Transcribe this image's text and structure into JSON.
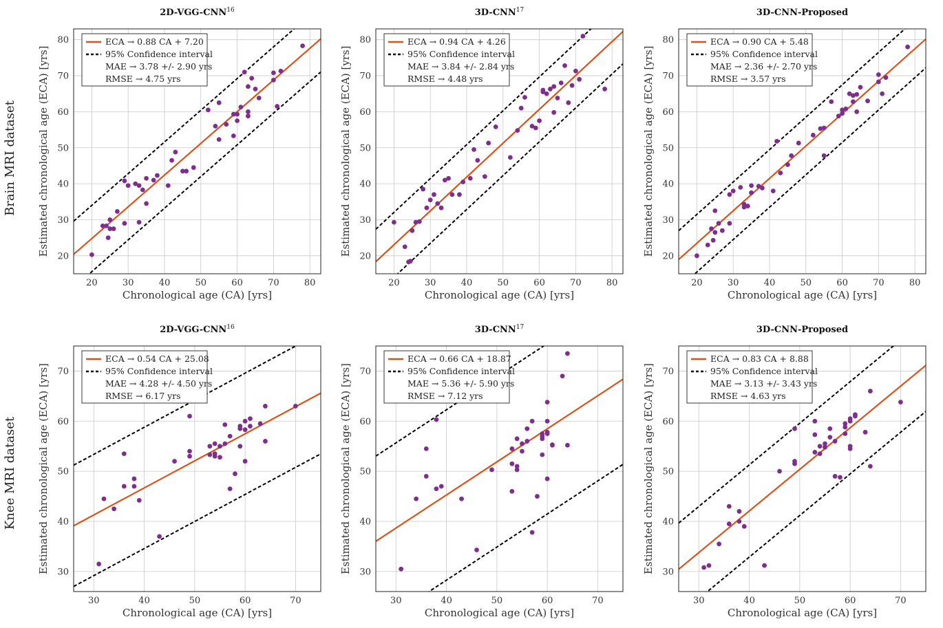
{
  "row_labels": [
    "Brain MRI dataset",
    "Knee MRI dataset"
  ],
  "colors": {
    "fit": "#d95319",
    "point": "#7e2f8e",
    "ci": "#000000",
    "grid": "#c8c8c8"
  },
  "chart_data": [
    {
      "type": "scatter",
      "title": "2D-VGG-CNN",
      "title_sup": "16",
      "xlabel": "Chronological age (CA) [yrs]",
      "ylabel": "Estimated chronological age (ECA) [yrs]",
      "xlim": [
        15,
        83
      ],
      "ylim": [
        15,
        83
      ],
      "xticks": [
        20,
        30,
        40,
        50,
        60,
        70,
        80
      ],
      "yticks": [
        20,
        30,
        40,
        50,
        60,
        70,
        80
      ],
      "fit": {
        "slope": 0.88,
        "intercept": 7.2,
        "ci_offset": 9.2
      },
      "legend": [
        "ECA → 0.88 CA + 7.20",
        "95% Confidence interval",
        "MAE → 3.78 +/- 2.90 yrs",
        "RMSE → 4.75 yrs"
      ],
      "points": [
        [
          20,
          20.3
        ],
        [
          23,
          28.3
        ],
        [
          24,
          28.3
        ],
        [
          24.5,
          25
        ],
        [
          25,
          27.5
        ],
        [
          25,
          30
        ],
        [
          26,
          27.5
        ],
        [
          27,
          32.3
        ],
        [
          29,
          29
        ],
        [
          29,
          40.8
        ],
        [
          30,
          39.5
        ],
        [
          32,
          40
        ],
        [
          33,
          29.3
        ],
        [
          33,
          39.5
        ],
        [
          34,
          38.3
        ],
        [
          35,
          41.5
        ],
        [
          35,
          34.5
        ],
        [
          37,
          41
        ],
        [
          38,
          42.3
        ],
        [
          41,
          39.5
        ],
        [
          42,
          46.5
        ],
        [
          43,
          48.8
        ],
        [
          45,
          43.5
        ],
        [
          46,
          43.5
        ],
        [
          48,
          44.5
        ],
        [
          52,
          60.5
        ],
        [
          54,
          56
        ],
        [
          55,
          62.5
        ],
        [
          55,
          52.3
        ],
        [
          57,
          56.5
        ],
        [
          59,
          53.3
        ],
        [
          59,
          59.3
        ],
        [
          60,
          57.5
        ],
        [
          60,
          59.3
        ],
        [
          61,
          61.3
        ],
        [
          62,
          71
        ],
        [
          63,
          58.8
        ],
        [
          63,
          60
        ],
        [
          63,
          67
        ],
        [
          64,
          69.3
        ],
        [
          65,
          66.3
        ],
        [
          66,
          63.8
        ],
        [
          70,
          68.8
        ],
        [
          70,
          70.8
        ],
        [
          71,
          61.5
        ],
        [
          72,
          71.3
        ],
        [
          78,
          78.3
        ]
      ]
    },
    {
      "type": "scatter",
      "title": "3D-CNN",
      "title_sup": "17",
      "xlabel": "Chronological age (CA) [yrs]",
      "ylabel": "Estimated chronological age (ECA) [yrs]",
      "xlim": [
        15,
        83
      ],
      "ylim": [
        15,
        83
      ],
      "xticks": [
        20,
        30,
        40,
        50,
        60,
        70,
        80
      ],
      "yticks": [
        20,
        30,
        40,
        50,
        60,
        70,
        80
      ],
      "fit": {
        "slope": 0.94,
        "intercept": 4.26,
        "ci_offset": 9.0
      },
      "legend": [
        "ECA → 0.94 CA + 4.26",
        "95% Confidence interval",
        "MAE → 3.84 +/- 2.84 yrs",
        "RMSE → 4.48 yrs"
      ],
      "points": [
        [
          20,
          29.3
        ],
        [
          23,
          22.5
        ],
        [
          24,
          18.3
        ],
        [
          24.5,
          18.5
        ],
        [
          25,
          27
        ],
        [
          26,
          29.3
        ],
        [
          27,
          29.5
        ],
        [
          28,
          38.5
        ],
        [
          29,
          33.3
        ],
        [
          30,
          35.5
        ],
        [
          31,
          37
        ],
        [
          32,
          34.5
        ],
        [
          33,
          33.3
        ],
        [
          34,
          41
        ],
        [
          35,
          41.5
        ],
        [
          36,
          37
        ],
        [
          38,
          37
        ],
        [
          39,
          40.5
        ],
        [
          41,
          41.5
        ],
        [
          42,
          49.5
        ],
        [
          43,
          46.5
        ],
        [
          45,
          42
        ],
        [
          46,
          51.3
        ],
        [
          48,
          55.8
        ],
        [
          52,
          47.3
        ],
        [
          54,
          54.8
        ],
        [
          55,
          61
        ],
        [
          56,
          64
        ],
        [
          58,
          56
        ],
        [
          59,
          55.5
        ],
        [
          60,
          57.5
        ],
        [
          61,
          66
        ],
        [
          61,
          65.5
        ],
        [
          62,
          65
        ],
        [
          63,
          66.3
        ],
        [
          64,
          59.8
        ],
        [
          64,
          67
        ],
        [
          65,
          63.8
        ],
        [
          66,
          68
        ],
        [
          67,
          72.8
        ],
        [
          68,
          62.5
        ],
        [
          69,
          67.3
        ],
        [
          70,
          71.3
        ],
        [
          71,
          69
        ],
        [
          72,
          81
        ],
        [
          78,
          66.3
        ]
      ]
    },
    {
      "type": "scatter",
      "title": "3D-CNN-Proposed",
      "title_sup": "",
      "xlabel": "Chronological age (CA) [yrs]",
      "ylabel": "Estimated chronological age (ECA) [yrs]",
      "xlim": [
        15,
        83
      ],
      "ylim": [
        15,
        83
      ],
      "xticks": [
        20,
        30,
        40,
        50,
        60,
        70,
        80
      ],
      "yticks": [
        20,
        30,
        40,
        50,
        60,
        70,
        80
      ],
      "fit": {
        "slope": 0.9,
        "intercept": 5.48,
        "ci_offset": 8.0
      },
      "legend": [
        "ECA → 0.90 CA + 5.48",
        "95% Confidence interval",
        "MAE → 2.36 +/- 2.70 yrs",
        "RMSE → 3.57 yrs"
      ],
      "points": [
        [
          20,
          20
        ],
        [
          23,
          23
        ],
        [
          24,
          27.5
        ],
        [
          24.5,
          24.3
        ],
        [
          25,
          32.5
        ],
        [
          25,
          26.5
        ],
        [
          26,
          29
        ],
        [
          27,
          27
        ],
        [
          29,
          29
        ],
        [
          29,
          37
        ],
        [
          30,
          38
        ],
        [
          32,
          39
        ],
        [
          33,
          34.3
        ],
        [
          33,
          33.5
        ],
        [
          34,
          33.8
        ],
        [
          35,
          39.5
        ],
        [
          35,
          37.5
        ],
        [
          37,
          39.3
        ],
        [
          38,
          38.8
        ],
        [
          41,
          38
        ],
        [
          42,
          51.8
        ],
        [
          43,
          43
        ],
        [
          45,
          45.3
        ],
        [
          46,
          47.8
        ],
        [
          48,
          51.3
        ],
        [
          52,
          53.5
        ],
        [
          54,
          55.3
        ],
        [
          55,
          55.5
        ],
        [
          55,
          47.8
        ],
        [
          57,
          62.8
        ],
        [
          59,
          58.8
        ],
        [
          60,
          59.5
        ],
        [
          60,
          60.5
        ],
        [
          61,
          60.8
        ],
        [
          62,
          65
        ],
        [
          63,
          62.8
        ],
        [
          63,
          64.5
        ],
        [
          64,
          64.8
        ],
        [
          64,
          60
        ],
        [
          65,
          66.8
        ],
        [
          67,
          63
        ],
        [
          70,
          68.3
        ],
        [
          70,
          70.3
        ],
        [
          71,
          65
        ],
        [
          72,
          69.5
        ],
        [
          78,
          78
        ]
      ]
    },
    {
      "type": "scatter",
      "title": "2D-VGG-CNN",
      "title_sup": "16",
      "xlabel": "Chronological age (CA) [yrs]",
      "ylabel": "Estimated chronological age (ECA) [yrs]",
      "xlim": [
        26,
        75
      ],
      "ylim": [
        26,
        75
      ],
      "xticks": [
        30,
        40,
        50,
        60,
        70
      ],
      "yticks": [
        30,
        40,
        50,
        60,
        70
      ],
      "fit": {
        "slope": 0.54,
        "intercept": 25.08,
        "ci_offset": 12.1
      },
      "legend": [
        "ECA → 0.54 CA + 25.08",
        "95% Confidence interval",
        "MAE → 4.28 +/- 4.50 yrs",
        "RMSE → 6.17 yrs"
      ],
      "points": [
        [
          31,
          31.5
        ],
        [
          32,
          44.5
        ],
        [
          34,
          42.5
        ],
        [
          36,
          53.5
        ],
        [
          36,
          47
        ],
        [
          38,
          48.5
        ],
        [
          38,
          47
        ],
        [
          39,
          44.2
        ],
        [
          43,
          37
        ],
        [
          46,
          52
        ],
        [
          49,
          61
        ],
        [
          49,
          54
        ],
        [
          49,
          53
        ],
        [
          53,
          55
        ],
        [
          53,
          53.3
        ],
        [
          54,
          55.5
        ],
        [
          54,
          53.5
        ],
        [
          54,
          53
        ],
        [
          55,
          55
        ],
        [
          55,
          52.8
        ],
        [
          56,
          59.3
        ],
        [
          56,
          55.5
        ],
        [
          57,
          57
        ],
        [
          57,
          46.5
        ],
        [
          58,
          49.5
        ],
        [
          59,
          59
        ],
        [
          59,
          58.5
        ],
        [
          59,
          55
        ],
        [
          60,
          60
        ],
        [
          60,
          58.3
        ],
        [
          60,
          52
        ],
        [
          61,
          60.5
        ],
        [
          61,
          59
        ],
        [
          63,
          59.5
        ],
        [
          64,
          63
        ],
        [
          64,
          56
        ],
        [
          70,
          63
        ]
      ]
    },
    {
      "type": "scatter",
      "title": "3D-CNN",
      "title_sup": "17",
      "xlabel": "Chronological age (CA) [yrs]",
      "ylabel": "Estimated chronological age (ECA) [yrs]",
      "xlim": [
        26,
        75
      ],
      "ylim": [
        26,
        75
      ],
      "xticks": [
        30,
        40,
        50,
        60,
        70
      ],
      "yticks": [
        30,
        40,
        50,
        60,
        70
      ],
      "fit": {
        "slope": 0.66,
        "intercept": 18.87,
        "ci_offset": 17.0
      },
      "legend": [
        "ECA → 0.66 CA + 18.87",
        "95% Confidence interval",
        "MAE → 5.36 +/- 5.90 yrs",
        "RMSE → 7.12 yrs"
      ],
      "points": [
        [
          31,
          30.5
        ],
        [
          34,
          44.5
        ],
        [
          36,
          54.5
        ],
        [
          36,
          49
        ],
        [
          38,
          60.3
        ],
        [
          38,
          46.5
        ],
        [
          39,
          47
        ],
        [
          43,
          44.5
        ],
        [
          46,
          34.3
        ],
        [
          49,
          50.3
        ],
        [
          53,
          54.5
        ],
        [
          53,
          51.5
        ],
        [
          53,
          46
        ],
        [
          54,
          56.5
        ],
        [
          54,
          51
        ],
        [
          54,
          50.3
        ],
        [
          55,
          55.5
        ],
        [
          55,
          54
        ],
        [
          56,
          56
        ],
        [
          56,
          58.5
        ],
        [
          57,
          60
        ],
        [
          57,
          37.8
        ],
        [
          58,
          45
        ],
        [
          59,
          57.5
        ],
        [
          59,
          57
        ],
        [
          59,
          56.5
        ],
        [
          59,
          53.3
        ],
        [
          60,
          63.8
        ],
        [
          60,
          60
        ],
        [
          60,
          57.5
        ],
        [
          60,
          57.8
        ],
        [
          60,
          48.5
        ],
        [
          61,
          55.3
        ],
        [
          61,
          55.2
        ],
        [
          63,
          69
        ],
        [
          64,
          73.5
        ],
        [
          64,
          55.2
        ]
      ]
    },
    {
      "type": "scatter",
      "title": "3D-CNN-Proposed",
      "title_sup": "",
      "xlabel": "Chronological age (CA) [yrs]",
      "ylabel": "Estimated chronological age (ECA) [yrs]",
      "xlim": [
        26,
        75
      ],
      "ylim": [
        26,
        75
      ],
      "xticks": [
        30,
        40,
        50,
        60,
        70
      ],
      "yticks": [
        30,
        40,
        50,
        60,
        70
      ],
      "fit": {
        "slope": 0.83,
        "intercept": 8.88,
        "ci_offset": 9.2
      },
      "legend": [
        "ECA → 0.83 CA + 8.88",
        "95% Confidence interval",
        "MAE → 3.13 +/- 3.43 yrs",
        "RMSE → 4.63 yrs"
      ],
      "points": [
        [
          31,
          30.8
        ],
        [
          32,
          31.2
        ],
        [
          34,
          35.5
        ],
        [
          36,
          43
        ],
        [
          36,
          39.5
        ],
        [
          38,
          42
        ],
        [
          38,
          40
        ],
        [
          39,
          39
        ],
        [
          43,
          31.2
        ],
        [
          46,
          50
        ],
        [
          49,
          58.5
        ],
        [
          49,
          52
        ],
        [
          49,
          51.5
        ],
        [
          53,
          60
        ],
        [
          53,
          57.3
        ],
        [
          53,
          53.8
        ],
        [
          54,
          55
        ],
        [
          54,
          53.5
        ],
        [
          55,
          55.5
        ],
        [
          55,
          54.8
        ],
        [
          56,
          58.5
        ],
        [
          56,
          56.8
        ],
        [
          57,
          56
        ],
        [
          57,
          49
        ],
        [
          58,
          48.8
        ],
        [
          59,
          59.5
        ],
        [
          59,
          58.8
        ],
        [
          59,
          57.5
        ],
        [
          60,
          60.5
        ],
        [
          60,
          60
        ],
        [
          60,
          55
        ],
        [
          60,
          54.5
        ],
        [
          61,
          61.3
        ],
        [
          61,
          61
        ],
        [
          63,
          57.8
        ],
        [
          64,
          66
        ],
        [
          64,
          51
        ],
        [
          70,
          63.8
        ]
      ]
    }
  ]
}
